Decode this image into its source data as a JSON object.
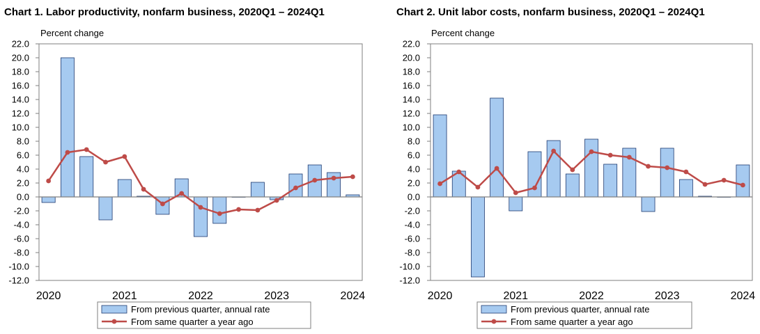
{
  "colors": {
    "bar_fill": "#a6caf0",
    "bar_stroke": "#1f3a70",
    "line": "#be4b48",
    "axis": "#7f7f7f",
    "text": "#000000"
  },
  "chart_data": [
    {
      "type": "bar",
      "title": "Chart  1. Labor productivity, nonfarm business, 2020Q1 – 2024Q1",
      "ylabel": "Percent change",
      "ylim": [
        -12,
        22
      ],
      "ytick_step": 2,
      "y_ticks": [
        "22.0",
        "20.0",
        "18.0",
        "16.0",
        "14.0",
        "12.0",
        "10.0",
        "8.0",
        "6.0",
        "4.0",
        "2.0",
        "0.0",
        "-2.0",
        "-4.0",
        "-6.0",
        "-8.0",
        "-10.0",
        "-12.0"
      ],
      "categories": [
        "2020Q1",
        "2020Q2",
        "2020Q3",
        "2020Q4",
        "2021Q1",
        "2021Q2",
        "2021Q3",
        "2021Q4",
        "2022Q1",
        "2022Q2",
        "2022Q3",
        "2022Q4",
        "2023Q1",
        "2023Q2",
        "2023Q3",
        "2023Q4",
        "2024Q1"
      ],
      "x_tick_labels": [
        "2020",
        "2021",
        "2022",
        "2023",
        "2024"
      ],
      "x_tick_indices": [
        0,
        4,
        8,
        12,
        16
      ],
      "legend": [
        "From previous quarter, annual rate",
        "From same quarter a year ago"
      ],
      "series": [
        {
          "name": "From previous quarter, annual rate",
          "kind": "bar",
          "values": [
            -0.8,
            20.0,
            5.8,
            -3.3,
            2.5,
            0.1,
            -2.5,
            2.6,
            -5.7,
            -3.8,
            0.0,
            2.1,
            -0.4,
            3.3,
            4.6,
            3.5,
            0.3
          ]
        },
        {
          "name": "From same quarter a year ago",
          "kind": "line",
          "values": [
            2.3,
            6.4,
            6.8,
            5.0,
            5.8,
            1.1,
            -1.0,
            0.5,
            -1.5,
            -2.4,
            -1.8,
            -1.9,
            -0.5,
            1.3,
            2.4,
            2.7,
            2.9
          ]
        }
      ]
    },
    {
      "type": "bar",
      "title": "Chart  2. Unit labor costs, nonfarm business, 2020Q1 – 2024Q1",
      "ylabel": "Percent change",
      "ylim": [
        -12,
        22
      ],
      "ytick_step": 2,
      "y_ticks": [
        "22.0",
        "20.0",
        "18.0",
        "16.0",
        "14.0",
        "12.0",
        "10.0",
        "8.0",
        "6.0",
        "4.0",
        "2.0",
        "0.0",
        "-2.0",
        "-4.0",
        "-6.0",
        "-8.0",
        "-10.0",
        "-12.0"
      ],
      "categories": [
        "2020Q1",
        "2020Q2",
        "2020Q3",
        "2020Q4",
        "2021Q1",
        "2021Q2",
        "2021Q3",
        "2021Q4",
        "2022Q1",
        "2022Q2",
        "2022Q3",
        "2022Q4",
        "2023Q1",
        "2023Q2",
        "2023Q3",
        "2023Q4",
        "2024Q1"
      ],
      "x_tick_labels": [
        "2020",
        "2021",
        "2022",
        "2023",
        "2024"
      ],
      "x_tick_indices": [
        0,
        4,
        8,
        12,
        16
      ],
      "legend": [
        "From previous quarter, annual rate",
        "From same quarter a year ago"
      ],
      "series": [
        {
          "name": "From previous quarter, annual rate",
          "kind": "bar",
          "values": [
            11.8,
            3.7,
            -11.5,
            14.2,
            -2.0,
            6.5,
            8.1,
            3.3,
            8.3,
            4.7,
            7.0,
            -2.1,
            7.0,
            2.5,
            0.1,
            0.0,
            4.6
          ]
        },
        {
          "name": "From same quarter a year ago",
          "kind": "line",
          "values": [
            1.9,
            3.6,
            1.4,
            4.1,
            0.6,
            1.3,
            6.6,
            3.9,
            6.5,
            6.0,
            5.7,
            4.4,
            4.2,
            3.6,
            1.8,
            2.4,
            1.7
          ]
        }
      ]
    }
  ]
}
